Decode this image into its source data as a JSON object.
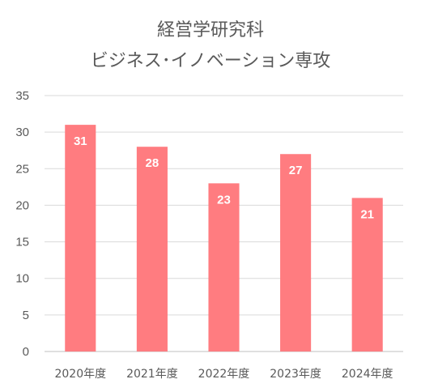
{
  "chart_data": {
    "type": "bar",
    "title_lines": [
      "経営学研究科",
      "ビジネス･イノベーション専攻"
    ],
    "categories": [
      "2020年度",
      "2021年度",
      "2022年度",
      "2023年度",
      "2024年度"
    ],
    "values": [
      31,
      28,
      23,
      27,
      21
    ],
    "ylim": [
      0,
      35
    ],
    "yticks": [
      0,
      5,
      10,
      15,
      20,
      25,
      30,
      35
    ],
    "grid": true,
    "bar_color": "#ff7c80",
    "data_label_color": "#ffffff"
  }
}
